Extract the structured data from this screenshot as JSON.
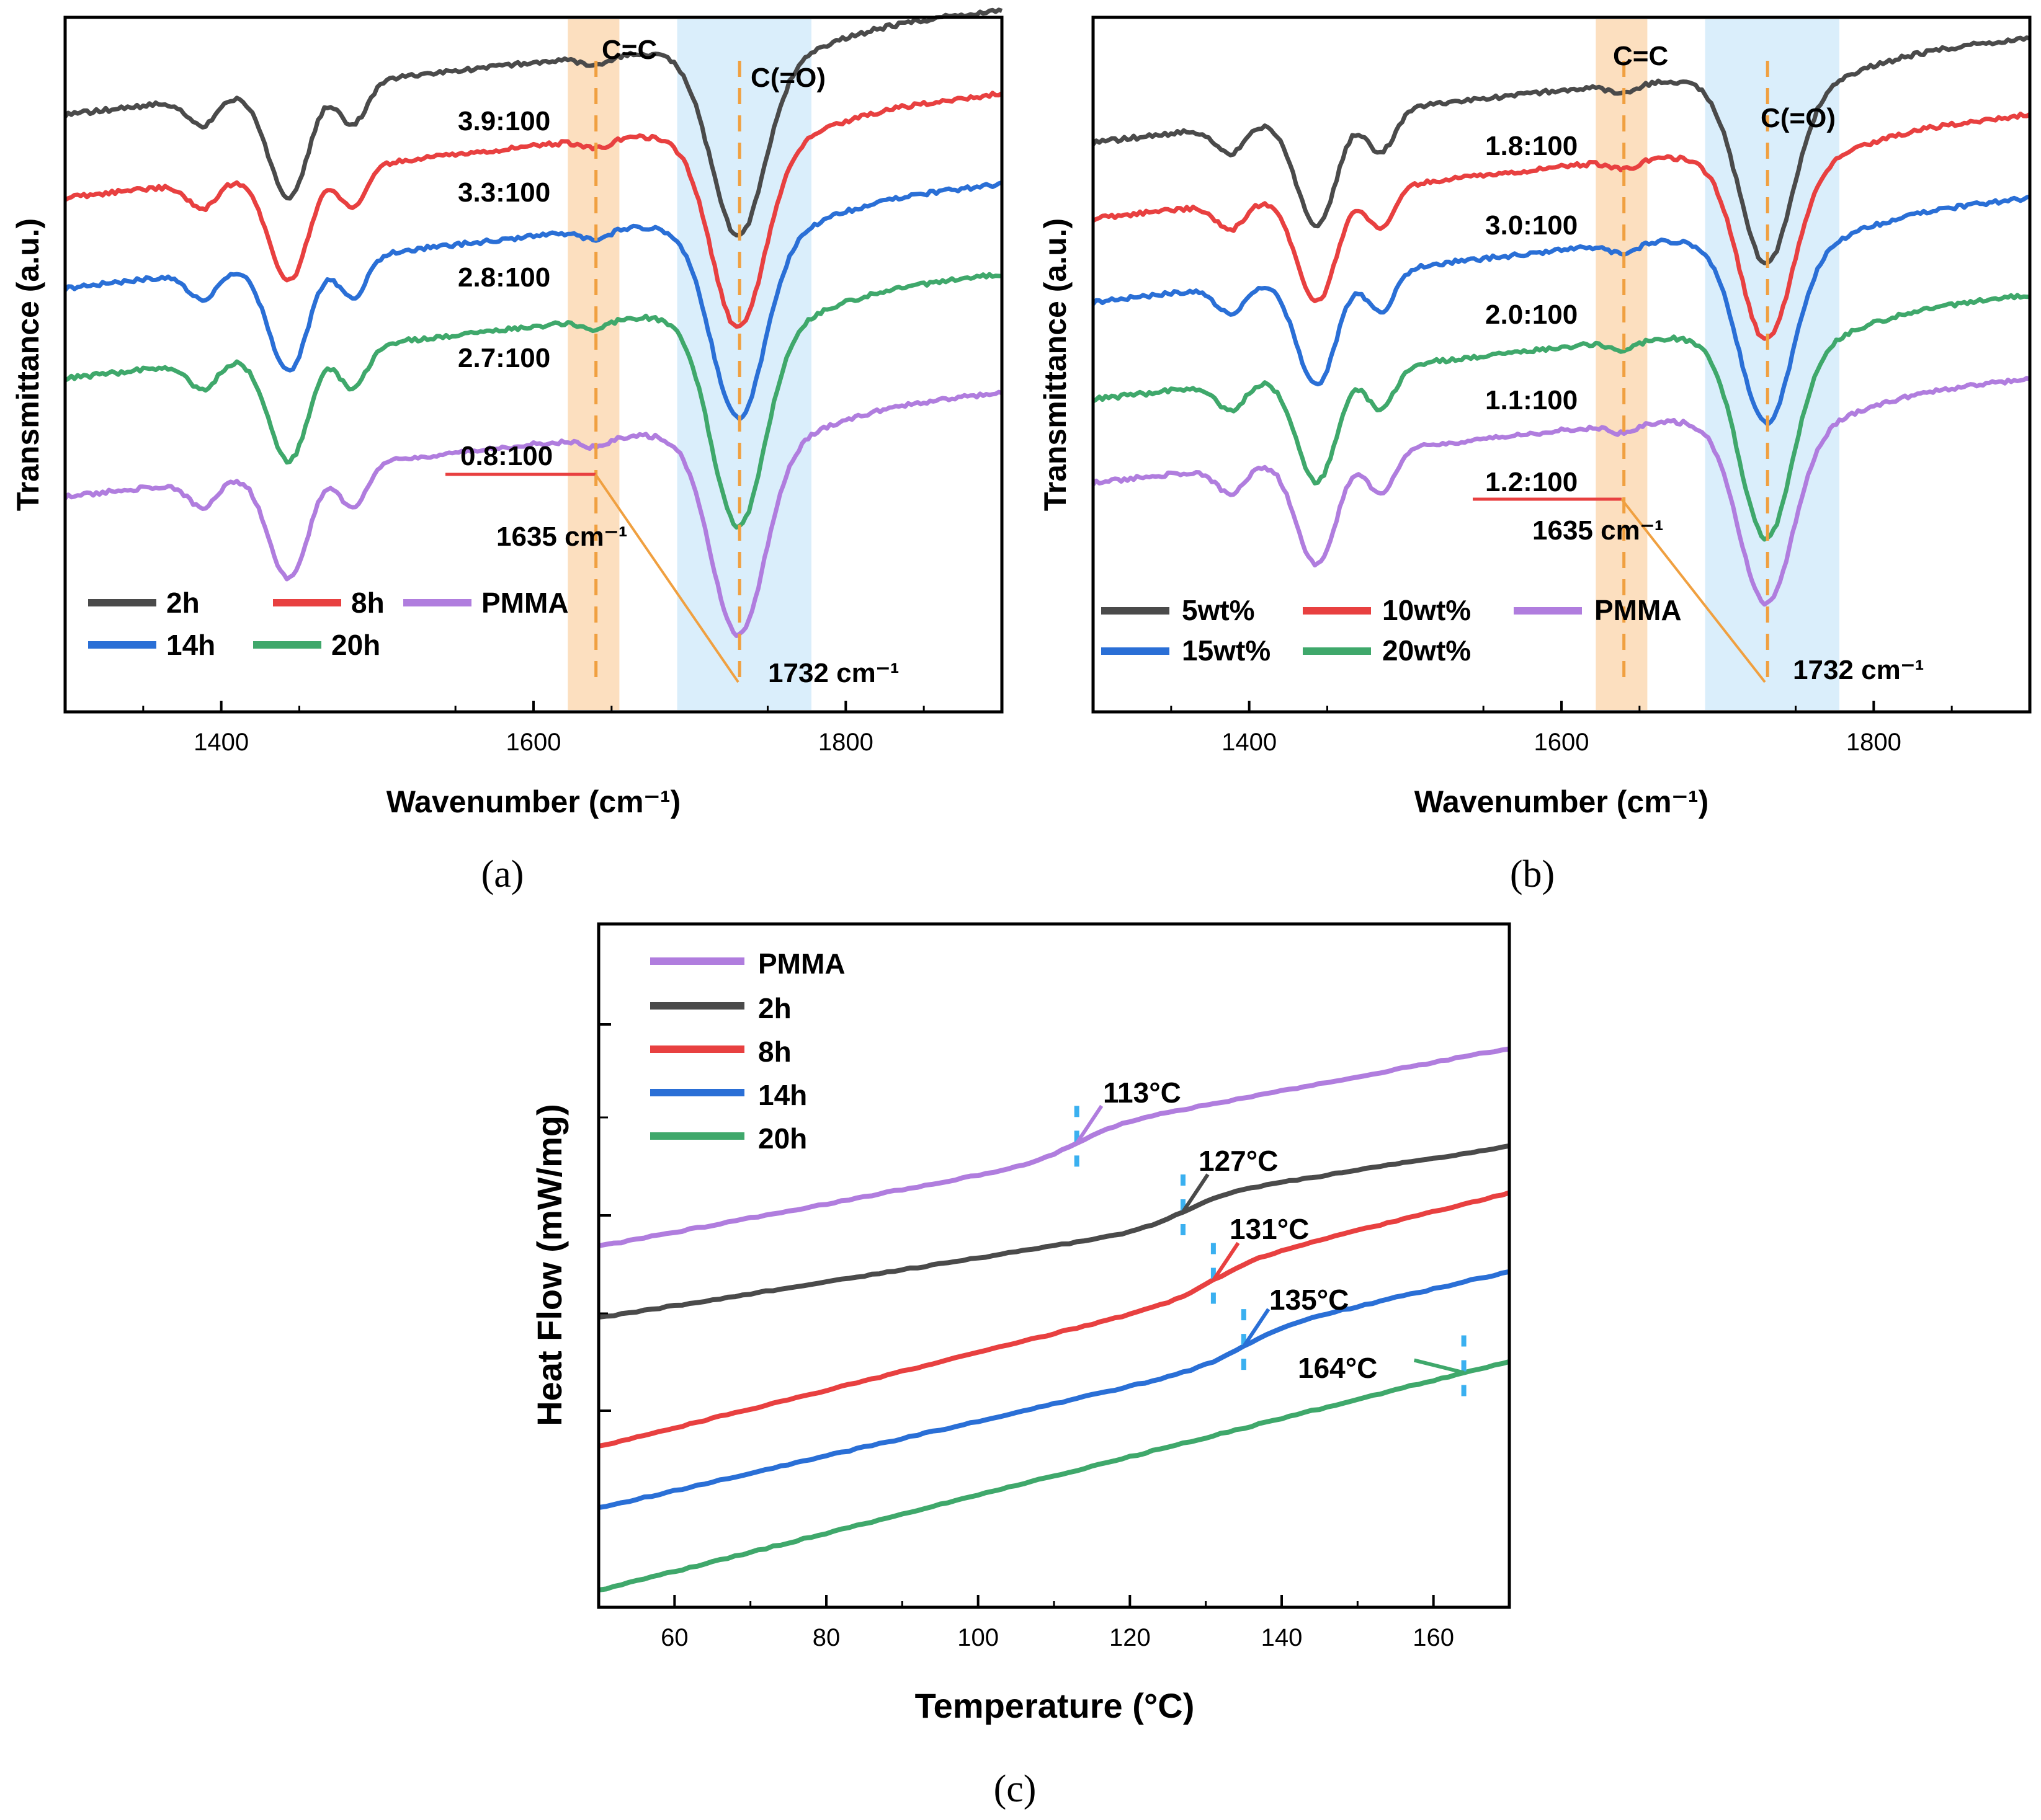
{
  "chart_data": [
    {
      "type": "line",
      "panel": "a",
      "caption": "(a)",
      "xlabel": "Wavenumber (cm⁻¹)",
      "ylabel": "Transmittance (a.u.)",
      "xlim": [
        1300,
        1900
      ],
      "xticks": [
        "1400",
        "1600",
        "1800"
      ],
      "x_ticks_num": [
        1400,
        1600,
        1800
      ],
      "bands": [
        {
          "name": "C=C",
          "from": 1622,
          "to": 1655,
          "center": 1640,
          "color": "#FBD9B4"
        },
        {
          "name": "C(=O)",
          "from": 1692,
          "to": 1778,
          "center": 1732,
          "color": "#D3EBFA"
        }
      ],
      "band_labels": [
        "C=C",
        "C(=O)"
      ],
      "peak_labels": [
        "1635 cm⁻¹",
        "1732 cm⁻¹"
      ],
      "series": [
        {
          "name": "2h",
          "color": "#4A4A4A",
          "offset": 0.86,
          "depth": 1.0,
          "ratio": "3.9:100"
        },
        {
          "name": "8h",
          "color": "#E84040",
          "offset": 0.74,
          "depth": 1.05,
          "ratio": "3.3:100"
        },
        {
          "name": "14h",
          "color": "#2A6FD6",
          "offset": 0.61,
          "depth": 1.05,
          "ratio": "2.8:100"
        },
        {
          "name": "20h",
          "color": "#3FA86B",
          "offset": 0.48,
          "depth": 1.15,
          "ratio": "2.7:100"
        },
        {
          "name": "PMMA",
          "color": "#B07DDE",
          "offset": 0.31,
          "depth": 1.1,
          "ratio": "0.8:100"
        }
      ]
    },
    {
      "type": "line",
      "panel": "b",
      "caption": "(b)",
      "xlabel": "Wavenumber (cm⁻¹)",
      "ylabel": "Transmittance (a.u.)",
      "xlim": [
        1300,
        1900
      ],
      "xticks": [
        "1400",
        "1600",
        "1800"
      ],
      "x_ticks_num": [
        1400,
        1600,
        1800
      ],
      "bands": [
        {
          "name": "C=C",
          "from": 1622,
          "to": 1655,
          "center": 1640,
          "color": "#FBD9B4"
        },
        {
          "name": "C(=O)",
          "from": 1692,
          "to": 1778,
          "center": 1732,
          "color": "#D3EBFA"
        }
      ],
      "band_labels": [
        "C=C",
        "C(=O)"
      ],
      "peak_labels": [
        "1635 cm⁻¹",
        "1732 cm⁻¹"
      ],
      "series": [
        {
          "name": "5wt%",
          "color": "#4A4A4A",
          "offset": 0.82,
          "depth": 1.0,
          "ratio": "1.8:100"
        },
        {
          "name": "10wt%",
          "color": "#E84040",
          "offset": 0.71,
          "depth": 1.0,
          "ratio": "3.0:100"
        },
        {
          "name": "15wt%",
          "color": "#2A6FD6",
          "offset": 0.59,
          "depth": 1.0,
          "ratio": "2.0:100"
        },
        {
          "name": "20wt%",
          "color": "#3FA86B",
          "offset": 0.45,
          "depth": 1.1,
          "ratio": "1.1:100"
        },
        {
          "name": "PMMA",
          "color": "#B07DDE",
          "offset": 0.33,
          "depth": 1.0,
          "ratio": "1.2:100"
        }
      ]
    },
    {
      "type": "line",
      "panel": "c",
      "caption": "(c)",
      "xlabel": "Temperature (°C)",
      "ylabel": "Heat Flow (mW/mg)",
      "xlim": [
        50,
        170
      ],
      "xticks": [
        "60",
        "80",
        "100",
        "120",
        "140",
        "160"
      ],
      "x_ticks_num": [
        60,
        80,
        100,
        120,
        140,
        160
      ],
      "series": [
        {
          "name": "PMMA",
          "color": "#B07DDE",
          "tg": 113,
          "tg_label": "113°C"
        },
        {
          "name": "2h",
          "color": "#4A4A4A",
          "tg": 127,
          "tg_label": "127°C"
        },
        {
          "name": "8h",
          "color": "#E84040",
          "tg": 131,
          "tg_label": "131°C"
        },
        {
          "name": "14h",
          "color": "#2A6FD6",
          "tg": 135,
          "tg_label": "135°C"
        },
        {
          "name": "20h",
          "color": "#3FA86B",
          "tg": 164,
          "tg_label": "164°C"
        }
      ]
    }
  ]
}
